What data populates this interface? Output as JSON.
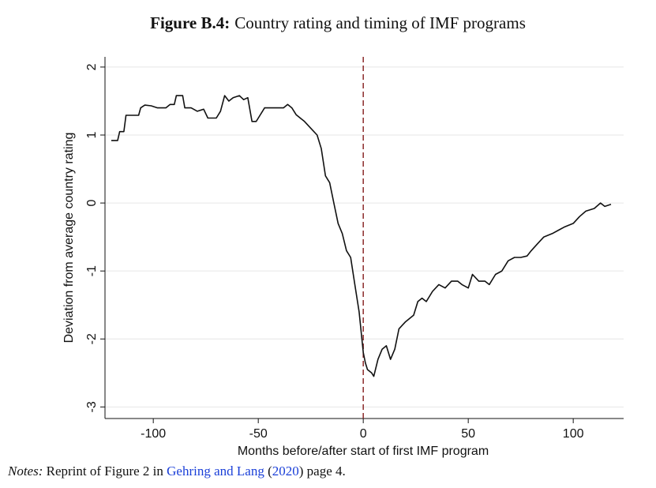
{
  "chart_data": {
    "type": "line",
    "title_label": "Figure B.4:",
    "title": "Country rating and timing of IMF programs",
    "xlabel": "Months before/after start of first IMF program",
    "ylabel": "Deviation from average country rating",
    "x": [
      -120,
      -117,
      -116,
      -114,
      -113,
      -110,
      -107,
      -106,
      -104,
      -101,
      -98,
      -94,
      -92,
      -90,
      -89,
      -86,
      -85,
      -82,
      -79,
      -76,
      -74,
      -70,
      -68,
      -66,
      -64,
      -62,
      -59,
      -57,
      -55,
      -53,
      -51,
      -50,
      -47,
      -44,
      -38,
      -36,
      -34,
      -32,
      -28,
      -25,
      -22,
      -20,
      -18,
      -16,
      -14,
      -12,
      -10,
      -8,
      -6,
      -4,
      -2,
      0,
      1,
      2,
      4,
      5,
      7,
      9,
      11,
      13,
      15,
      17,
      20,
      24,
      26,
      28,
      30,
      33,
      36,
      39,
      42,
      45,
      47,
      50,
      52,
      55,
      58,
      60,
      63,
      66,
      69,
      72,
      75,
      78,
      80,
      83,
      86,
      90,
      93,
      96,
      100,
      103,
      106,
      110,
      113,
      115,
      118
    ],
    "values": [
      0.92,
      0.92,
      1.05,
      1.05,
      1.29,
      1.29,
      1.29,
      1.4,
      1.44,
      1.43,
      1.4,
      1.4,
      1.45,
      1.45,
      1.58,
      1.58,
      1.4,
      1.4,
      1.35,
      1.38,
      1.25,
      1.25,
      1.35,
      1.58,
      1.5,
      1.55,
      1.58,
      1.52,
      1.55,
      1.2,
      1.2,
      1.25,
      1.4,
      1.4,
      1.4,
      1.45,
      1.4,
      1.3,
      1.2,
      1.1,
      1.0,
      0.8,
      0.4,
      0.3,
      0.0,
      -0.3,
      -0.45,
      -0.7,
      -0.8,
      -1.2,
      -1.6,
      -2.2,
      -2.35,
      -2.45,
      -2.5,
      -2.55,
      -2.3,
      -2.15,
      -2.1,
      -2.3,
      -2.15,
      -1.85,
      -1.75,
      -1.65,
      -1.45,
      -1.4,
      -1.45,
      -1.3,
      -1.2,
      -1.25,
      -1.15,
      -1.15,
      -1.2,
      -1.25,
      -1.05,
      -1.15,
      -1.15,
      -1.2,
      -1.05,
      -1.0,
      -0.85,
      -0.8,
      -0.8,
      -0.78,
      -0.7,
      -0.6,
      -0.5,
      -0.45,
      -0.4,
      -0.35,
      -0.3,
      -0.2,
      -0.12,
      -0.08,
      0.0,
      -0.05,
      -0.02
    ],
    "color": "#111111",
    "reference_line": {
      "x": 0,
      "color": "#8b2a2a"
    },
    "xlim": [
      -123,
      124
    ],
    "ylim": [
      -3.17,
      2.15
    ],
    "xticks": [
      -100,
      -50,
      0,
      50,
      100
    ],
    "yticks": [
      -3,
      -2,
      -1,
      0,
      1,
      2
    ],
    "grid": true
  },
  "notes": {
    "label": "Notes:",
    "segments": [
      "Reprint of Figure 2 in ",
      "Gehring and Lang",
      " (",
      "2020",
      ") page 4."
    ]
  }
}
